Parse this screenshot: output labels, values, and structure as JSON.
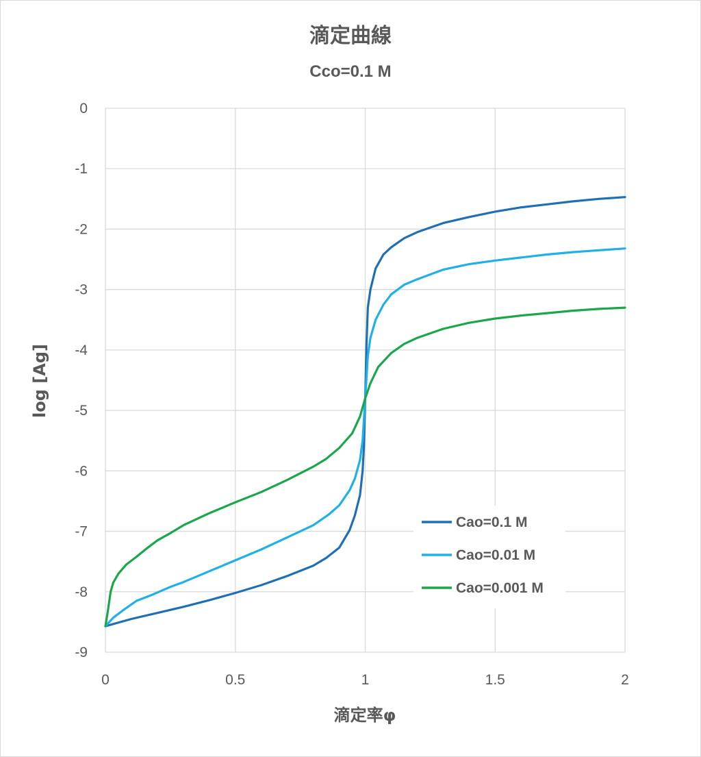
{
  "chart_data": {
    "type": "line",
    "title": "滴定曲線",
    "subtitle": "Cco=0.1 M",
    "xlabel": "滴定率φ",
    "ylabel": "log [Ag]",
    "xlim": [
      0,
      2
    ],
    "ylim": [
      -9,
      0
    ],
    "xticks": [
      0,
      0.5,
      1,
      1.5,
      2
    ],
    "xtick_labels": [
      "0",
      "0.5",
      "1",
      "1.5",
      "2"
    ],
    "yticks": [
      0,
      -1,
      -2,
      -3,
      -4,
      -5,
      -6,
      -7,
      -8,
      -9
    ],
    "ytick_labels": [
      "0",
      "-1",
      "-2",
      "-3",
      "-4",
      "-5",
      "-6",
      "-7",
      "-8",
      "-9"
    ],
    "grid": true,
    "legend_position": "bottom-right",
    "series": [
      {
        "name": "Cao=0.1 M",
        "color": "#1f6fb5",
        "points": [
          [
            0,
            -8.57
          ],
          [
            0.1,
            -8.45
          ],
          [
            0.2,
            -8.35
          ],
          [
            0.3,
            -8.25
          ],
          [
            0.4,
            -8.14
          ],
          [
            0.5,
            -8.02
          ],
          [
            0.6,
            -7.89
          ],
          [
            0.7,
            -7.74
          ],
          [
            0.8,
            -7.57
          ],
          [
            0.85,
            -7.44
          ],
          [
            0.9,
            -7.27
          ],
          [
            0.94,
            -6.98
          ],
          [
            0.96,
            -6.74
          ],
          [
            0.98,
            -6.4
          ],
          [
            0.99,
            -6.0
          ],
          [
            0.995,
            -5.6
          ],
          [
            1.0,
            -4.8
          ],
          [
            1.005,
            -3.9
          ],
          [
            1.01,
            -3.3
          ],
          [
            1.02,
            -3.0
          ],
          [
            1.04,
            -2.65
          ],
          [
            1.07,
            -2.42
          ],
          [
            1.1,
            -2.3
          ],
          [
            1.15,
            -2.15
          ],
          [
            1.2,
            -2.05
          ],
          [
            1.3,
            -1.9
          ],
          [
            1.4,
            -1.8
          ],
          [
            1.5,
            -1.71
          ],
          [
            1.6,
            -1.64
          ],
          [
            1.7,
            -1.59
          ],
          [
            1.8,
            -1.54
          ],
          [
            1.9,
            -1.5
          ],
          [
            2.0,
            -1.47
          ]
        ]
      },
      {
        "name": "Cao=0.01 M",
        "color": "#1eb0e6",
        "points": [
          [
            0,
            -8.57
          ],
          [
            0.03,
            -8.43
          ],
          [
            0.07,
            -8.3
          ],
          [
            0.12,
            -8.15
          ],
          [
            0.18,
            -8.05
          ],
          [
            0.25,
            -7.92
          ],
          [
            0.3,
            -7.84
          ],
          [
            0.4,
            -7.66
          ],
          [
            0.5,
            -7.48
          ],
          [
            0.6,
            -7.3
          ],
          [
            0.7,
            -7.1
          ],
          [
            0.8,
            -6.9
          ],
          [
            0.86,
            -6.72
          ],
          [
            0.9,
            -6.57
          ],
          [
            0.94,
            -6.32
          ],
          [
            0.96,
            -6.13
          ],
          [
            0.98,
            -5.82
          ],
          [
            0.99,
            -5.5
          ],
          [
            1.0,
            -4.8
          ],
          [
            1.01,
            -4.1
          ],
          [
            1.02,
            -3.8
          ],
          [
            1.04,
            -3.5
          ],
          [
            1.07,
            -3.25
          ],
          [
            1.1,
            -3.08
          ],
          [
            1.15,
            -2.92
          ],
          [
            1.2,
            -2.83
          ],
          [
            1.3,
            -2.67
          ],
          [
            1.4,
            -2.58
          ],
          [
            1.5,
            -2.52
          ],
          [
            1.6,
            -2.47
          ],
          [
            1.7,
            -2.42
          ],
          [
            1.8,
            -2.38
          ],
          [
            1.9,
            -2.35
          ],
          [
            2.0,
            -2.32
          ]
        ]
      },
      {
        "name": "Cao=0.001 M",
        "color": "#1aa64a",
        "points": [
          [
            0,
            -8.57
          ],
          [
            0.01,
            -8.3
          ],
          [
            0.02,
            -8.0
          ],
          [
            0.03,
            -7.85
          ],
          [
            0.05,
            -7.7
          ],
          [
            0.08,
            -7.55
          ],
          [
            0.12,
            -7.42
          ],
          [
            0.16,
            -7.28
          ],
          [
            0.2,
            -7.15
          ],
          [
            0.25,
            -7.03
          ],
          [
            0.3,
            -6.9
          ],
          [
            0.4,
            -6.7
          ],
          [
            0.5,
            -6.52
          ],
          [
            0.6,
            -6.35
          ],
          [
            0.7,
            -6.15
          ],
          [
            0.8,
            -5.93
          ],
          [
            0.85,
            -5.8
          ],
          [
            0.9,
            -5.62
          ],
          [
            0.95,
            -5.38
          ],
          [
            0.98,
            -5.1
          ],
          [
            1.0,
            -4.8
          ],
          [
            1.02,
            -4.55
          ],
          [
            1.05,
            -4.28
          ],
          [
            1.1,
            -4.05
          ],
          [
            1.15,
            -3.9
          ],
          [
            1.2,
            -3.8
          ],
          [
            1.3,
            -3.65
          ],
          [
            1.4,
            -3.55
          ],
          [
            1.5,
            -3.48
          ],
          [
            1.6,
            -3.43
          ],
          [
            1.7,
            -3.39
          ],
          [
            1.8,
            -3.35
          ],
          [
            1.9,
            -3.32
          ],
          [
            2.0,
            -3.3
          ]
        ]
      }
    ]
  }
}
